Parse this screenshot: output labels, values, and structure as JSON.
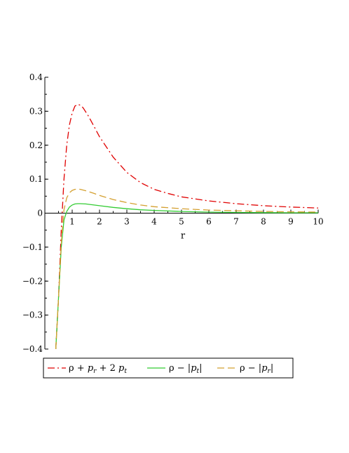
{
  "chart_data": {
    "type": "line",
    "title": "",
    "xlabel": "r",
    "ylabel": "",
    "xlim": [
      0,
      10
    ],
    "ylim": [
      -0.4,
      0.4
    ],
    "x_ticks": [
      "1",
      "2",
      "3",
      "4",
      "5",
      "6",
      "7",
      "8",
      "9",
      "10"
    ],
    "y_ticks": [
      "0.4",
      "0.3",
      "0.2",
      "0.1",
      "0",
      "-0.1",
      "-0.2",
      "-0.3",
      "-0.4"
    ],
    "y_tick_values": [
      0.4,
      0.3,
      0.2,
      0.1,
      0,
      -0.1,
      -0.2,
      -0.3,
      -0.4
    ],
    "grid": false,
    "legend_position": "bottom",
    "series": [
      {
        "name": "ρ + p_r + 2 p_t",
        "color": "#e00000",
        "dash": "dash-dot",
        "x": [
          0.4,
          0.5,
          0.6,
          0.7,
          0.8,
          0.9,
          1.0,
          1.1,
          1.2,
          1.3,
          1.4,
          1.6,
          1.8,
          2.0,
          2.5,
          3.0,
          3.5,
          4.0,
          4.5,
          5.0,
          6.0,
          7.0,
          8.0,
          9.0,
          10.0
        ],
        "values": [
          -0.4,
          -0.25,
          -0.05,
          0.1,
          0.2,
          0.26,
          0.295,
          0.315,
          0.32,
          0.318,
          0.31,
          0.285,
          0.255,
          0.225,
          0.165,
          0.12,
          0.09,
          0.07,
          0.058,
          0.048,
          0.036,
          0.028,
          0.022,
          0.018,
          0.015
        ]
      },
      {
        "name": "ρ − |p_t|",
        "color": "#33cc33",
        "dash": "solid",
        "x": [
          0.4,
          0.5,
          0.6,
          0.7,
          0.8,
          0.9,
          1.0,
          1.1,
          1.2,
          1.3,
          1.5,
          1.8,
          2.0,
          2.5,
          3.0,
          3.5,
          4.0,
          5.0,
          6.0,
          7.0,
          8.0,
          9.0,
          10.0
        ],
        "values": [
          -0.4,
          -0.25,
          -0.1,
          -0.02,
          0.005,
          0.018,
          0.024,
          0.027,
          0.028,
          0.028,
          0.027,
          0.024,
          0.022,
          0.017,
          0.013,
          0.01,
          0.008,
          0.005,
          0.003,
          0.002,
          0.0015,
          0.001,
          0.001
        ]
      },
      {
        "name": "ρ − |p_r|",
        "color": "#d4a030",
        "dash": "dashed",
        "x": [
          0.4,
          0.5,
          0.6,
          0.7,
          0.8,
          0.9,
          1.0,
          1.1,
          1.2,
          1.3,
          1.5,
          1.8,
          2.0,
          2.5,
          3.0,
          3.5,
          4.0,
          5.0,
          6.0,
          7.0,
          8.0,
          9.0,
          10.0
        ],
        "values": [
          -0.4,
          -0.25,
          -0.09,
          0.01,
          0.045,
          0.06,
          0.067,
          0.07,
          0.071,
          0.07,
          0.066,
          0.058,
          0.052,
          0.04,
          0.031,
          0.024,
          0.019,
          0.013,
          0.009,
          0.007,
          0.005,
          0.004,
          0.003
        ]
      }
    ],
    "legend": [
      {
        "base": "ρ + ",
        "p1": "p",
        "s1": "r",
        "mid": " + 2 ",
        "p2": "p",
        "s2": "t"
      },
      {
        "base": "ρ − |",
        "p1": "p",
        "s1": "t",
        "end": "|"
      },
      {
        "base": "ρ − |",
        "p1": "p",
        "s1": "r",
        "end": "|"
      }
    ]
  }
}
